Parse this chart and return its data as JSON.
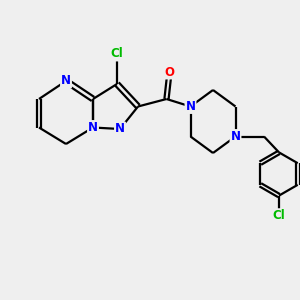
{
  "bg_color": "#efefef",
  "bond_color": "#000000",
  "bond_width": 1.6,
  "atom_colors": {
    "N": "#0000ff",
    "O": "#ff0000",
    "Cl": "#00bb00",
    "C": "#000000"
  },
  "font_size_atom": 8.5
}
